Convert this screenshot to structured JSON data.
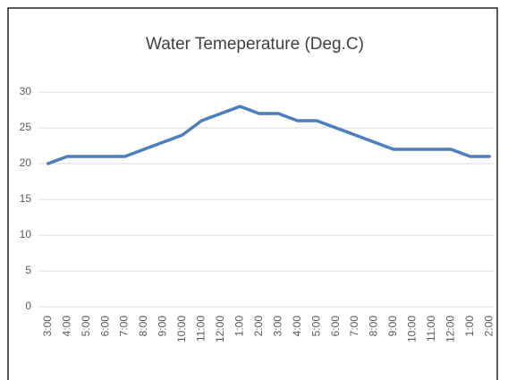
{
  "chart_data": {
    "type": "line",
    "title": "Water Temeperature (Deg.C)",
    "categories": [
      "3:00",
      "4:00",
      "5:00",
      "6:00",
      "7:00",
      "8:00",
      "9:00",
      "10:00",
      "11:00",
      "12:00",
      "1:00",
      "2:00",
      "3:00",
      "4:00",
      "5:00",
      "6:00",
      "7:00",
      "8:00",
      "9:00",
      "10:00",
      "11:00",
      "12:00",
      "1:00",
      "2:00"
    ],
    "series": [
      {
        "color": "#4a7ebf",
        "values": [
          20,
          21,
          21,
          21,
          21,
          22,
          23,
          24,
          26,
          27,
          28,
          27,
          27,
          26,
          26,
          25,
          24,
          23,
          22,
          22,
          22,
          22,
          21,
          21
        ]
      }
    ],
    "ylim": [
      0,
      30
    ],
    "yticks": [
      0,
      5,
      10,
      15,
      20,
      25,
      30
    ],
    "grid": true
  }
}
